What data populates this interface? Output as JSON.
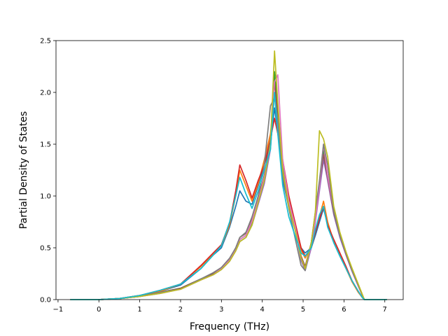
{
  "chart_data": {
    "type": "line",
    "xlabel": "Frequency (THz)",
    "ylabel": "Partial Density of States",
    "xlim": [
      -1.05,
      7.45
    ],
    "ylim": [
      0,
      2.5
    ],
    "xticks": [
      -1,
      0,
      1,
      2,
      3,
      4,
      5,
      6,
      7
    ],
    "yticks": [
      0.0,
      0.5,
      1.0,
      1.5,
      2.0,
      2.5
    ],
    "xtick_labels": [
      "−1",
      "0",
      "1",
      "2",
      "3",
      "4",
      "5",
      "6",
      "7"
    ],
    "ytick_labels": [
      "0.0",
      "0.5",
      "1.0",
      "1.5",
      "2.0",
      "2.5"
    ],
    "grid": false,
    "legend": "none",
    "series": [
      {
        "color": "#1f77b4",
        "x": [
          -0.7,
          0,
          0.5,
          1,
          1.5,
          2,
          2.5,
          2.8,
          3,
          3.2,
          3.35,
          3.45,
          3.6,
          3.75,
          3.9,
          4.05,
          4.2,
          4.3,
          4.38,
          4.5,
          4.65,
          4.8,
          4.95,
          5.05,
          5.2,
          5.3,
          5.4,
          5.5,
          5.6,
          5.75,
          5.9,
          6.05,
          6.2,
          6.35,
          6.45,
          6.5,
          7.05
        ],
        "y": [
          0,
          0,
          0.01,
          0.04,
          0.08,
          0.14,
          0.3,
          0.43,
          0.5,
          0.7,
          0.9,
          1.05,
          0.95,
          0.92,
          1.1,
          1.3,
          1.5,
          1.85,
          1.62,
          1.15,
          0.9,
          0.7,
          0.5,
          0.45,
          0.5,
          0.62,
          0.75,
          0.88,
          0.72,
          0.55,
          0.42,
          0.3,
          0.18,
          0.08,
          0.02,
          0,
          0
        ]
      },
      {
        "color": "#ff7f0e",
        "x": [
          -0.7,
          0,
          0.5,
          1,
          1.5,
          2,
          2.5,
          2.8,
          3,
          3.2,
          3.35,
          3.45,
          3.6,
          3.75,
          3.9,
          4.05,
          4.2,
          4.3,
          4.38,
          4.5,
          4.65,
          4.8,
          4.95,
          5.05,
          5.2,
          5.3,
          5.4,
          5.5,
          5.6,
          5.75,
          5.9,
          6.05,
          6.2,
          6.35,
          6.45,
          6.5,
          7.05
        ],
        "y": [
          0,
          0,
          0.01,
          0.04,
          0.08,
          0.15,
          0.32,
          0.44,
          0.52,
          0.72,
          1.0,
          1.25,
          1.1,
          0.95,
          1.12,
          1.35,
          1.6,
          2.0,
          1.7,
          1.2,
          0.95,
          0.75,
          0.48,
          0.4,
          0.52,
          0.66,
          0.8,
          0.95,
          0.75,
          0.56,
          0.43,
          0.3,
          0.17,
          0.07,
          0.02,
          0,
          0
        ]
      },
      {
        "color": "#2ca02c",
        "x": [
          -0.7,
          0,
          0.5,
          1,
          1.5,
          2,
          2.5,
          2.8,
          3,
          3.2,
          3.35,
          3.45,
          3.6,
          3.75,
          3.9,
          4.05,
          4.2,
          4.3,
          4.38,
          4.5,
          4.65,
          4.8,
          4.95,
          5.05,
          5.2,
          5.3,
          5.4,
          5.5,
          5.6,
          5.75,
          5.9,
          6.05,
          6.2,
          6.35,
          6.45,
          6.5,
          7.05
        ],
        "y": [
          0,
          0,
          0.01,
          0.03,
          0.07,
          0.11,
          0.2,
          0.25,
          0.3,
          0.38,
          0.48,
          0.58,
          0.62,
          0.75,
          0.95,
          1.15,
          1.5,
          2.2,
          1.85,
          1.3,
          0.95,
          0.7,
          0.4,
          0.3,
          0.55,
          0.8,
          1.1,
          1.45,
          1.2,
          0.85,
          0.62,
          0.45,
          0.28,
          0.14,
          0.04,
          0,
          0
        ]
      },
      {
        "color": "#d62728",
        "x": [
          -0.7,
          0,
          0.5,
          1,
          1.5,
          2,
          2.5,
          2.8,
          3,
          3.2,
          3.35,
          3.45,
          3.6,
          3.75,
          3.9,
          4.05,
          4.2,
          4.3,
          4.38,
          4.5,
          4.65,
          4.8,
          4.95,
          5.05,
          5.2,
          5.3,
          5.4,
          5.5,
          5.6,
          5.75,
          5.9,
          6.05,
          6.2,
          6.35,
          6.45,
          6.5,
          7.05
        ],
        "y": [
          0,
          0,
          0.01,
          0.04,
          0.09,
          0.15,
          0.33,
          0.45,
          0.53,
          0.74,
          1.05,
          1.3,
          1.15,
          0.98,
          1.15,
          1.3,
          1.55,
          1.75,
          1.6,
          1.35,
          1.0,
          0.75,
          0.5,
          0.42,
          0.5,
          0.65,
          0.78,
          0.9,
          0.72,
          0.58,
          0.45,
          0.32,
          0.18,
          0.08,
          0.02,
          0,
          0
        ]
      },
      {
        "color": "#9467bd",
        "x": [
          -0.7,
          0,
          0.5,
          1,
          1.5,
          2,
          2.5,
          2.8,
          3,
          3.2,
          3.35,
          3.45,
          3.6,
          3.75,
          3.9,
          4.05,
          4.2,
          4.3,
          4.38,
          4.5,
          4.65,
          4.8,
          4.95,
          5.05,
          5.2,
          5.3,
          5.4,
          5.5,
          5.6,
          5.75,
          5.9,
          6.05,
          6.2,
          6.35,
          6.45,
          6.5,
          7.05
        ],
        "y": [
          0,
          0,
          0.01,
          0.03,
          0.06,
          0.1,
          0.19,
          0.24,
          0.29,
          0.37,
          0.47,
          0.56,
          0.6,
          0.72,
          0.92,
          1.12,
          1.45,
          2.0,
          1.7,
          1.2,
          0.92,
          0.68,
          0.38,
          0.28,
          0.5,
          0.75,
          1.05,
          1.35,
          1.15,
          0.82,
          0.6,
          0.43,
          0.27,
          0.13,
          0.04,
          0,
          0
        ]
      },
      {
        "color": "#8c564b",
        "x": [
          -0.7,
          0,
          0.5,
          1,
          1.5,
          2,
          2.5,
          2.8,
          3,
          3.2,
          3.35,
          3.45,
          3.6,
          3.75,
          3.9,
          4.05,
          4.2,
          4.3,
          4.38,
          4.5,
          4.65,
          4.8,
          4.95,
          5.05,
          5.2,
          5.3,
          5.4,
          5.5,
          5.6,
          5.75,
          5.9,
          6.05,
          6.2,
          6.35,
          6.45,
          6.5,
          7.05
        ],
        "y": [
          0,
          0,
          0.01,
          0.03,
          0.07,
          0.11,
          0.2,
          0.25,
          0.31,
          0.39,
          0.5,
          0.6,
          0.64,
          0.78,
          0.98,
          1.2,
          1.55,
          2.1,
          1.8,
          1.25,
          0.93,
          0.7,
          0.42,
          0.32,
          0.55,
          0.82,
          1.12,
          1.4,
          1.18,
          0.84,
          0.62,
          0.44,
          0.28,
          0.14,
          0.04,
          0,
          0
        ]
      },
      {
        "color": "#e377c2",
        "x": [
          -0.7,
          0,
          0.5,
          1,
          1.5,
          2,
          2.5,
          2.8,
          3,
          3.2,
          3.35,
          3.45,
          3.6,
          3.75,
          3.9,
          4.05,
          4.2,
          4.3,
          4.38,
          4.5,
          4.65,
          4.8,
          4.95,
          5.05,
          5.2,
          5.3,
          5.4,
          5.5,
          5.6,
          5.75,
          5.9,
          6.05,
          6.2,
          6.35,
          6.45,
          6.5,
          7.05
        ],
        "y": [
          0,
          0,
          0.01,
          0.03,
          0.06,
          0.1,
          0.19,
          0.24,
          0.3,
          0.38,
          0.48,
          0.58,
          0.62,
          0.76,
          0.96,
          1.18,
          1.5,
          2.1,
          2.17,
          1.35,
          0.95,
          0.72,
          0.4,
          0.3,
          0.52,
          0.78,
          1.1,
          1.5,
          1.2,
          0.86,
          0.63,
          0.45,
          0.29,
          0.14,
          0.04,
          0,
          0
        ]
      },
      {
        "color": "#7f7f7f",
        "x": [
          -0.7,
          0,
          0.5,
          1,
          1.5,
          2,
          2.5,
          2.8,
          3,
          3.2,
          3.35,
          3.45,
          3.6,
          3.75,
          3.9,
          4.05,
          4.2,
          4.3,
          4.38,
          4.5,
          4.65,
          4.8,
          4.95,
          5.05,
          5.2,
          5.3,
          5.4,
          5.5,
          5.6,
          5.75,
          5.9,
          6.05,
          6.2,
          6.35,
          6.45,
          6.5,
          7.05
        ],
        "y": [
          0,
          0,
          0.01,
          0.03,
          0.07,
          0.1,
          0.2,
          0.26,
          0.31,
          0.4,
          0.5,
          0.6,
          0.65,
          0.8,
          1.0,
          1.3,
          1.87,
          1.95,
          1.75,
          1.2,
          0.88,
          0.6,
          0.33,
          0.28,
          0.55,
          0.85,
          1.15,
          1.5,
          1.3,
          0.85,
          0.62,
          0.45,
          0.28,
          0.14,
          0.04,
          0,
          0
        ]
      },
      {
        "color": "#bcbd22",
        "x": [
          -0.7,
          0,
          0.5,
          1,
          1.5,
          2,
          2.5,
          2.8,
          3,
          3.2,
          3.35,
          3.45,
          3.6,
          3.75,
          3.9,
          4.05,
          4.2,
          4.3,
          4.38,
          4.5,
          4.65,
          4.8,
          4.95,
          5.05,
          5.2,
          5.3,
          5.4,
          5.5,
          5.6,
          5.75,
          5.9,
          6.05,
          6.2,
          6.35,
          6.45,
          6.5,
          7.05
        ],
        "y": [
          0,
          0,
          0.01,
          0.03,
          0.06,
          0.1,
          0.19,
          0.24,
          0.29,
          0.37,
          0.47,
          0.56,
          0.6,
          0.72,
          0.94,
          1.15,
          1.5,
          2.4,
          1.9,
          1.25,
          0.9,
          0.68,
          0.4,
          0.3,
          0.55,
          0.85,
          1.63,
          1.55,
          1.38,
          0.9,
          0.65,
          0.46,
          0.3,
          0.15,
          0.05,
          0,
          0
        ]
      },
      {
        "color": "#17becf",
        "x": [
          -0.7,
          0,
          0.5,
          1,
          1.5,
          2,
          2.5,
          2.8,
          3,
          3.2,
          3.35,
          3.45,
          3.6,
          3.75,
          3.9,
          4.05,
          4.2,
          4.3,
          4.38,
          4.5,
          4.65,
          4.8,
          4.95,
          5.05,
          5.2,
          5.3,
          5.4,
          5.5,
          5.6,
          5.75,
          5.9,
          6.05,
          6.2,
          6.35,
          6.45,
          6.5,
          7.05
        ],
        "y": [
          0,
          0,
          0.01,
          0.04,
          0.09,
          0.15,
          0.3,
          0.43,
          0.52,
          0.75,
          1.0,
          1.18,
          1.02,
          0.88,
          1.05,
          1.25,
          1.45,
          2.0,
          1.6,
          1.1,
          0.8,
          0.62,
          0.45,
          0.42,
          0.5,
          0.68,
          0.82,
          0.9,
          0.7,
          0.55,
          0.42,
          0.3,
          0.18,
          0.08,
          0.02,
          0,
          0
        ]
      }
    ]
  }
}
